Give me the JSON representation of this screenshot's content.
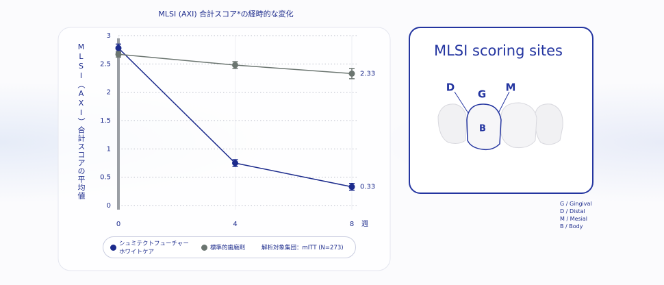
{
  "chart_data": {
    "type": "line",
    "title": "MLSI (AXI) 合計スコア*の経時的な変化",
    "y_label": "MLSI（AXI）合計スコアの平均値",
    "x_unit": "週",
    "x": [
      0,
      4,
      8
    ],
    "series": [
      {
        "name": "シュミテクトフューチャーホワイトケア",
        "color": "#1c2b8c",
        "values": [
          2.78,
          0.75,
          0.33
        ],
        "errors": [
          0.07,
          0.06,
          0.06
        ]
      },
      {
        "name": "標準的歯磨剤",
        "color": "#6b7570",
        "values": [
          2.67,
          2.48,
          2.33
        ],
        "errors": [
          0.05,
          0.06,
          0.09
        ]
      }
    ],
    "end_labels": true,
    "note": "解析対象集団：mITT (N=273)",
    "xlim": [
      0,
      8
    ],
    "xticks": [
      0,
      4,
      8
    ],
    "ylim": [
      0,
      3
    ],
    "yticks": [
      0,
      0.5,
      1,
      1.5,
      2,
      2.5,
      3
    ],
    "grid": true
  },
  "diagram": {
    "title": "MLSI scoring sites",
    "labels": {
      "d": "D",
      "g": "G",
      "m": "M",
      "b": "B"
    },
    "legend": [
      "G / Gingival",
      "D / Distal",
      "M / Mesial",
      "B / Body"
    ]
  }
}
